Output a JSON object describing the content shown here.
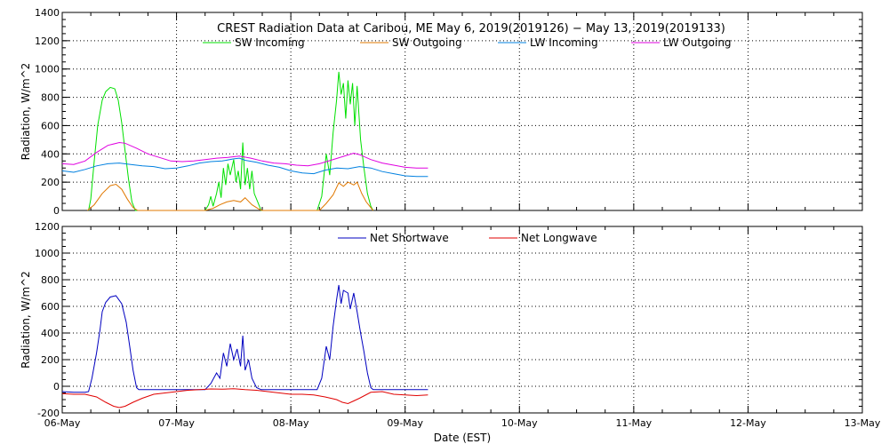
{
  "chart_data": [
    {
      "type": "line",
      "title": "CREST Radiation Data at Caribou, ME   May  6, 2019(2019126) − May 13, 2019(2019133)",
      "ylabel": "Radiation, W/m^2",
      "xlabel": "",
      "xlim": [
        "2019-05-06",
        "2019-05-13"
      ],
      "ylim": [
        0,
        1400
      ],
      "yticks": [
        0,
        200,
        400,
        600,
        800,
        1000,
        1200,
        1400
      ],
      "xtick_labels": [],
      "grid": true,
      "legend_position": "top",
      "series": [
        {
          "name": "SW Incoming",
          "color": "#00e000",
          "points": [
            [
              0.23,
              0
            ],
            [
              0.25,
              80
            ],
            [
              0.28,
              350
            ],
            [
              0.31,
              600
            ],
            [
              0.35,
              780
            ],
            [
              0.38,
              840
            ],
            [
              0.42,
              870
            ],
            [
              0.46,
              860
            ],
            [
              0.49,
              780
            ],
            [
              0.52,
              620
            ],
            [
              0.55,
              420
            ],
            [
              0.58,
              220
            ],
            [
              0.61,
              60
            ],
            [
              0.64,
              0
            ],
            [
              1.25,
              0
            ],
            [
              1.28,
              40
            ],
            [
              1.3,
              100
            ],
            [
              1.32,
              30
            ],
            [
              1.35,
              120
            ],
            [
              1.37,
              200
            ],
            [
              1.39,
              90
            ],
            [
              1.41,
              300
            ],
            [
              1.43,
              180
            ],
            [
              1.45,
              330
            ],
            [
              1.47,
              250
            ],
            [
              1.5,
              360
            ],
            [
              1.52,
              200
            ],
            [
              1.54,
              280
            ],
            [
              1.56,
              150
            ],
            [
              1.58,
              480
            ],
            [
              1.6,
              180
            ],
            [
              1.62,
              300
            ],
            [
              1.64,
              150
            ],
            [
              1.66,
              280
            ],
            [
              1.68,
              120
            ],
            [
              1.71,
              60
            ],
            [
              1.74,
              0
            ],
            [
              2.23,
              0
            ],
            [
              2.27,
              100
            ],
            [
              2.31,
              400
            ],
            [
              2.34,
              250
            ],
            [
              2.37,
              550
            ],
            [
              2.4,
              780
            ],
            [
              2.42,
              980
            ],
            [
              2.44,
              820
            ],
            [
              2.46,
              900
            ],
            [
              2.48,
              650
            ],
            [
              2.5,
              920
            ],
            [
              2.52,
              750
            ],
            [
              2.54,
              900
            ],
            [
              2.56,
              600
            ],
            [
              2.58,
              880
            ],
            [
              2.61,
              500
            ],
            [
              2.64,
              300
            ],
            [
              2.67,
              120
            ],
            [
              2.7,
              30
            ],
            [
              2.72,
              0
            ]
          ]
        },
        {
          "name": "SW Outgoing",
          "color": "#e07800",
          "points": [
            [
              0.22,
              0
            ],
            [
              0.28,
              40
            ],
            [
              0.35,
              120
            ],
            [
              0.42,
              175
            ],
            [
              0.47,
              185
            ],
            [
              0.52,
              150
            ],
            [
              0.57,
              80
            ],
            [
              0.62,
              20
            ],
            [
              0.66,
              0
            ],
            [
              1.25,
              0
            ],
            [
              1.32,
              15
            ],
            [
              1.38,
              40
            ],
            [
              1.44,
              60
            ],
            [
              1.5,
              70
            ],
            [
              1.56,
              60
            ],
            [
              1.6,
              90
            ],
            [
              1.66,
              40
            ],
            [
              1.72,
              10
            ],
            [
              1.75,
              0
            ],
            [
              2.25,
              0
            ],
            [
              2.31,
              50
            ],
            [
              2.37,
              110
            ],
            [
              2.42,
              195
            ],
            [
              2.46,
              170
            ],
            [
              2.5,
              200
            ],
            [
              2.55,
              180
            ],
            [
              2.58,
              200
            ],
            [
              2.62,
              120
            ],
            [
              2.66,
              60
            ],
            [
              2.72,
              0
            ]
          ]
        },
        {
          "name": "LW Incoming",
          "color": "#0080e0",
          "points": [
            [
              0.0,
              280
            ],
            [
              0.1,
              270
            ],
            [
              0.2,
              290
            ],
            [
              0.3,
              315
            ],
            [
              0.4,
              330
            ],
            [
              0.5,
              335
            ],
            [
              0.6,
              325
            ],
            [
              0.7,
              315
            ],
            [
              0.8,
              310
            ],
            [
              0.9,
              295
            ],
            [
              1.0,
              300
            ],
            [
              1.1,
              315
            ],
            [
              1.2,
              335
            ],
            [
              1.3,
              345
            ],
            [
              1.4,
              350
            ],
            [
              1.5,
              365
            ],
            [
              1.55,
              370
            ],
            [
              1.6,
              355
            ],
            [
              1.7,
              340
            ],
            [
              1.8,
              320
            ],
            [
              1.9,
              305
            ],
            [
              2.0,
              280
            ],
            [
              2.1,
              265
            ],
            [
              2.2,
              260
            ],
            [
              2.3,
              285
            ],
            [
              2.4,
              300
            ],
            [
              2.5,
              295
            ],
            [
              2.6,
              310
            ],
            [
              2.7,
              300
            ],
            [
              2.8,
              275
            ],
            [
              2.9,
              260
            ],
            [
              3.0,
              245
            ],
            [
              3.1,
              240
            ],
            [
              3.2,
              240
            ]
          ]
        },
        {
          "name": "LW Outgoing",
          "color": "#e000e0",
          "points": [
            [
              0.0,
              330
            ],
            [
              0.1,
              325
            ],
            [
              0.2,
              350
            ],
            [
              0.3,
              410
            ],
            [
              0.4,
              460
            ],
            [
              0.5,
              480
            ],
            [
              0.55,
              475
            ],
            [
              0.65,
              440
            ],
            [
              0.75,
              400
            ],
            [
              0.85,
              375
            ],
            [
              0.95,
              350
            ],
            [
              1.05,
              345
            ],
            [
              1.15,
              350
            ],
            [
              1.25,
              360
            ],
            [
              1.35,
              370
            ],
            [
              1.45,
              375
            ],
            [
              1.55,
              385
            ],
            [
              1.65,
              370
            ],
            [
              1.75,
              350
            ],
            [
              1.85,
              335
            ],
            [
              1.95,
              330
            ],
            [
              2.05,
              320
            ],
            [
              2.15,
              315
            ],
            [
              2.25,
              330
            ],
            [
              2.35,
              355
            ],
            [
              2.45,
              380
            ],
            [
              2.55,
              405
            ],
            [
              2.6,
              395
            ],
            [
              2.7,
              360
            ],
            [
              2.8,
              335
            ],
            [
              2.9,
              320
            ],
            [
              3.0,
              305
            ],
            [
              3.1,
              300
            ],
            [
              3.2,
              300
            ]
          ]
        }
      ]
    },
    {
      "type": "line",
      "title": "",
      "ylabel": "Radiation, W/m^2",
      "xlabel": "Date (EST)",
      "xlim": [
        "2019-05-06",
        "2019-05-13"
      ],
      "ylim": [
        -200,
        1200
      ],
      "yticks": [
        -200,
        0,
        200,
        400,
        600,
        800,
        1000,
        1200
      ],
      "xtick_labels": [
        "06-May",
        "07-May",
        "08-May",
        "09-May",
        "10-May",
        "11-May",
        "12-May",
        "13-May"
      ],
      "grid": true,
      "legend_position": "top",
      "series": [
        {
          "name": "Net Shortwave",
          "color": "#0000c0",
          "points": [
            [
              0.0,
              -40
            ],
            [
              0.1,
              -45
            ],
            [
              0.2,
              -45
            ],
            [
              0.23,
              -40
            ],
            [
              0.26,
              60
            ],
            [
              0.3,
              250
            ],
            [
              0.33,
              420
            ],
            [
              0.35,
              560
            ],
            [
              0.38,
              630
            ],
            [
              0.42,
              670
            ],
            [
              0.47,
              680
            ],
            [
              0.52,
              620
            ],
            [
              0.56,
              480
            ],
            [
              0.59,
              300
            ],
            [
              0.62,
              120
            ],
            [
              0.65,
              -10
            ],
            [
              0.67,
              -25
            ],
            [
              1.0,
              -25
            ],
            [
              1.25,
              -25
            ],
            [
              1.3,
              20
            ],
            [
              1.35,
              100
            ],
            [
              1.38,
              60
            ],
            [
              1.41,
              250
            ],
            [
              1.44,
              150
            ],
            [
              1.47,
              320
            ],
            [
              1.5,
              200
            ],
            [
              1.53,
              280
            ],
            [
              1.56,
              150
            ],
            [
              1.58,
              380
            ],
            [
              1.6,
              120
            ],
            [
              1.63,
              200
            ],
            [
              1.66,
              60
            ],
            [
              1.7,
              -10
            ],
            [
              1.74,
              -25
            ],
            [
              2.23,
              -25
            ],
            [
              2.27,
              60
            ],
            [
              2.31,
              300
            ],
            [
              2.34,
              200
            ],
            [
              2.37,
              450
            ],
            [
              2.4,
              650
            ],
            [
              2.42,
              760
            ],
            [
              2.44,
              620
            ],
            [
              2.46,
              720
            ],
            [
              2.5,
              700
            ],
            [
              2.52,
              580
            ],
            [
              2.55,
              700
            ],
            [
              2.58,
              560
            ],
            [
              2.61,
              400
            ],
            [
              2.64,
              260
            ],
            [
              2.67,
              100
            ],
            [
              2.7,
              -10
            ],
            [
              2.72,
              -25
            ],
            [
              3.0,
              -25
            ],
            [
              3.2,
              -25
            ]
          ]
        },
        {
          "name": "Net Longwave",
          "color": "#e00000",
          "points": [
            [
              0.0,
              -55
            ],
            [
              0.1,
              -60
            ],
            [
              0.2,
              -60
            ],
            [
              0.3,
              -80
            ],
            [
              0.38,
              -120
            ],
            [
              0.45,
              -150
            ],
            [
              0.5,
              -160
            ],
            [
              0.55,
              -150
            ],
            [
              0.62,
              -120
            ],
            [
              0.7,
              -90
            ],
            [
              0.8,
              -60
            ],
            [
              0.9,
              -50
            ],
            [
              1.0,
              -40
            ],
            [
              1.1,
              -30
            ],
            [
              1.2,
              -25
            ],
            [
              1.3,
              -20
            ],
            [
              1.4,
              -22
            ],
            [
              1.5,
              -18
            ],
            [
              1.6,
              -25
            ],
            [
              1.7,
              -30
            ],
            [
              1.8,
              -40
            ],
            [
              1.9,
              -50
            ],
            [
              2.0,
              -60
            ],
            [
              2.1,
              -60
            ],
            [
              2.2,
              -65
            ],
            [
              2.3,
              -80
            ],
            [
              2.4,
              -100
            ],
            [
              2.45,
              -120
            ],
            [
              2.5,
              -130
            ],
            [
              2.55,
              -110
            ],
            [
              2.6,
              -90
            ],
            [
              2.7,
              -45
            ],
            [
              2.8,
              -40
            ],
            [
              2.9,
              -60
            ],
            [
              3.0,
              -65
            ],
            [
              3.1,
              -70
            ],
            [
              3.2,
              -65
            ]
          ]
        }
      ]
    }
  ]
}
